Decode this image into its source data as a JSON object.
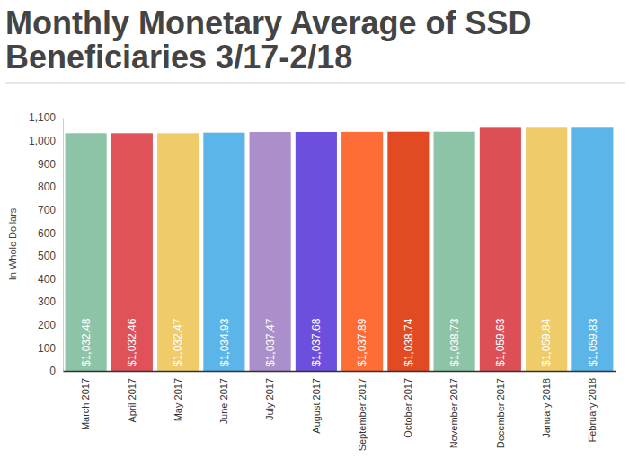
{
  "chart_data": {
    "type": "bar",
    "title": "Monthly Monetary Average of SSD Beneficiaries 3/17-2/18",
    "ylabel": "In Whole Dollars",
    "categories": [
      "March 2017",
      "April 2017",
      "May 2017",
      "June 2017",
      "July 2017",
      "August 2017",
      "September 2017",
      "October 2017",
      "November 2017",
      "December 2017",
      "January 2018",
      "February 2018"
    ],
    "values": [
      1032.48,
      1032.46,
      1032.47,
      1034.93,
      1037.47,
      1037.68,
      1037.89,
      1038.74,
      1038.73,
      1059.63,
      1059.84,
      1059.83
    ],
    "value_labels": [
      "$1,032.48",
      "$1,032.46",
      "$1,032.47",
      "$1,034.93",
      "$1,037.47",
      "$1,037.68",
      "$1,037.89",
      "$1,038.74",
      "$1,038.73",
      "$1,059.63",
      "$1,059.84",
      "$1,059.83"
    ],
    "colors": [
      "#8dc3a7",
      "#e0525a",
      "#efcb6a",
      "#5bb5e8",
      "#aa8fca",
      "#6d4fde",
      "#ff6d37",
      "#e24a23",
      "#8dc3a7",
      "#dd4f57",
      "#efcb6a",
      "#5bb5e8"
    ],
    "data_labels": true,
    "grid": false,
    "ylim": [
      0,
      1100
    ],
    "yticks": [
      0,
      100,
      200,
      300,
      400,
      500,
      600,
      700,
      800,
      900,
      {
        "value": 1000,
        "label": "1,000"
      },
      {
        "value": 1100,
        "label": "1,100"
      }
    ]
  }
}
